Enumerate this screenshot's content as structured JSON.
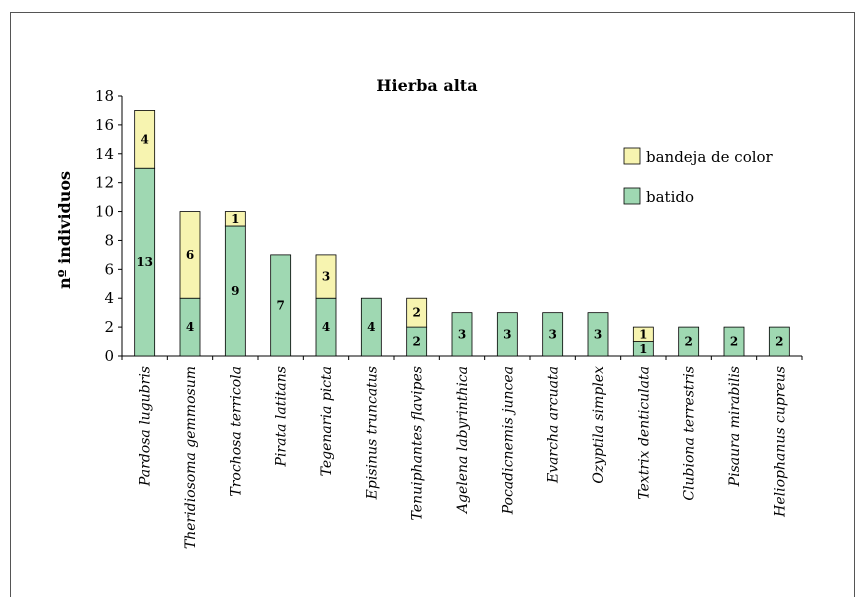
{
  "chart_data": {
    "type": "bar",
    "stacked": true,
    "title": "Hierba alta",
    "xlabel": "",
    "ylabel": "nº individuos",
    "ylim": [
      0,
      18
    ],
    "yticks": [
      0,
      2,
      4,
      6,
      8,
      10,
      12,
      14,
      16,
      18
    ],
    "grid": false,
    "legend_position": "right",
    "categories": [
      "Pardosa lugubris",
      "Theridiosoma gemmosum",
      "Trochosa terricola",
      "Pirata latitans",
      "Tegenaria picta",
      "Episinus truncatus",
      "Tenuiphantes flavipes",
      "Agelena labyrinthica",
      "Pocadicnemis juncea",
      "Evarcha arcuata",
      "Ozyptila simplex",
      "Textrix denticulata",
      "Clubiona terrestris",
      "Pisaura mirabilis",
      "Heliophanus cupreus"
    ],
    "series": [
      {
        "name": "batido",
        "color": "#9fd8b2",
        "values": [
          13,
          4,
          9,
          7,
          4,
          4,
          2,
          3,
          3,
          3,
          3,
          1,
          2,
          2,
          2
        ]
      },
      {
        "name": "bandeja de color",
        "color": "#f7f4b0",
        "values": [
          4,
          6,
          1,
          0,
          3,
          0,
          2,
          0,
          0,
          0,
          0,
          1,
          0,
          0,
          0
        ]
      }
    ],
    "legend_order": [
      "bandeja de color",
      "batido"
    ]
  }
}
